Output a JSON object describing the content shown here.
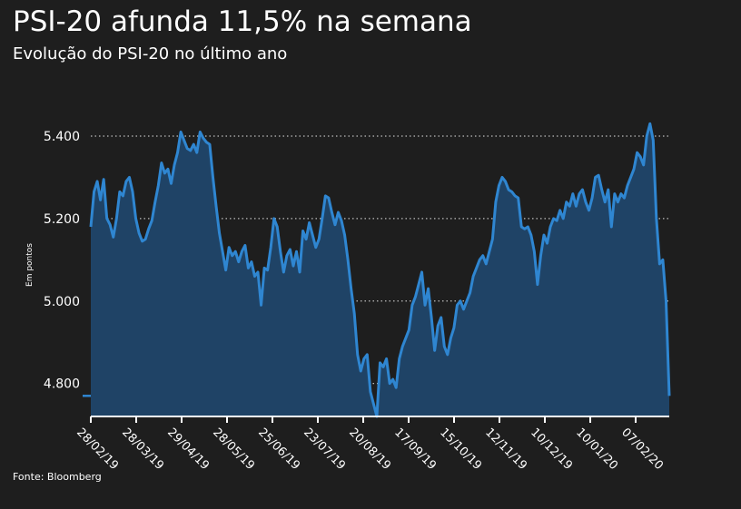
{
  "title": "PSI-20 afunda 11,5% na semana",
  "subtitle": "Evolução do PSI-20 no último ano",
  "source": "Fonte: Bloomberg",
  "colors": {
    "background": "#1e1e1e",
    "line": "#2f86d1",
    "area": "#1f4366",
    "grid": "#bdbdbd",
    "text": "#ffffff"
  },
  "chart_data": {
    "type": "area",
    "title": "PSI-20 afunda 11,5% na semana",
    "subtitle": "Evolução do PSI-20 no último ano",
    "ylabel": "Em pontos",
    "xlabel": "",
    "ylim": [
      4720,
      5510
    ],
    "grid": "horizontal dotted",
    "legend": "none",
    "y_ticks": [
      4800,
      5000,
      5200,
      5400
    ],
    "y_tick_labels": [
      "4.800",
      "5.000",
      "5.200",
      "5.400"
    ],
    "x_tick_labels": [
      "28/02/19",
      "28/03/19",
      "29/04/19",
      "28/05/19",
      "25/06/19",
      "23/07/19",
      "20/08/19",
      "17/09/19",
      "15/10/19",
      "12/11/19",
      "10/12/19",
      "10/01/20",
      "07/02/20"
    ],
    "series": [
      {
        "values": [
          5180,
          5265,
          5290,
          5245,
          5295,
          5200,
          5185,
          5155,
          5200,
          5265,
          5255,
          5290,
          5300,
          5265,
          5200,
          5165,
          5145,
          5150,
          5175,
          5195,
          5240,
          5280,
          5335,
          5310,
          5320,
          5285,
          5330,
          5360,
          5410,
          5390,
          5370,
          5365,
          5380,
          5360,
          5410,
          5395,
          5385,
          5380,
          5300,
          5230,
          5165,
          5120,
          5075,
          5130,
          5110,
          5120,
          5095,
          5120,
          5135,
          5080,
          5095,
          5060,
          5070,
          4990,
          5080,
          5075,
          5130,
          5200,
          5180,
          5120,
          5070,
          5110,
          5125,
          5085,
          5120,
          5070,
          5170,
          5150,
          5190,
          5160,
          5130,
          5150,
          5200,
          5255,
          5250,
          5215,
          5185,
          5215,
          5195,
          5160,
          5100,
          5030,
          4970,
          4870,
          4830,
          4860,
          4870,
          4780,
          4750,
          4720,
          4850,
          4840,
          4860,
          4800,
          4810,
          4790,
          4860,
          4890,
          4910,
          4930,
          4990,
          5010,
          5040,
          5070,
          4990,
          5030,
          4960,
          4880,
          4940,
          4960,
          4890,
          4870,
          4910,
          4935,
          4990,
          5000,
          4980,
          5000,
          5020,
          5060,
          5080,
          5100,
          5110,
          5090,
          5120,
          5150,
          5240,
          5280,
          5300,
          5290,
          5270,
          5265,
          5255,
          5250,
          5180,
          5175,
          5180,
          5160,
          5120,
          5040,
          5110,
          5160,
          5140,
          5180,
          5200,
          5195,
          5220,
          5200,
          5240,
          5230,
          5260,
          5230,
          5260,
          5270,
          5240,
          5220,
          5250,
          5300,
          5305,
          5270,
          5240,
          5270,
          5180,
          5260,
          5240,
          5260,
          5250,
          5280,
          5300,
          5320,
          5360,
          5350,
          5330,
          5400,
          5430,
          5390,
          5200,
          5090,
          5100,
          5000,
          4770
        ]
      }
    ]
  }
}
